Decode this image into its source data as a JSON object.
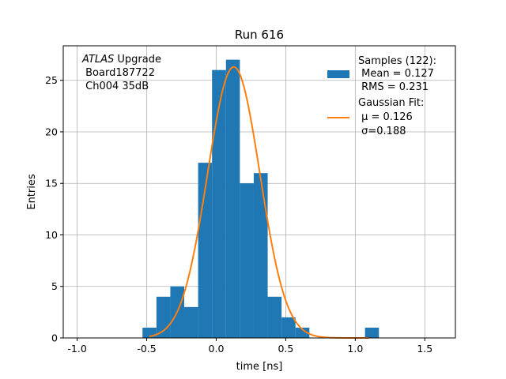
{
  "chart_data": {
    "type": "bar",
    "title": "Run 616",
    "xlabel": "time [ns]",
    "ylabel": "Entries",
    "xlim": [
      -1.1,
      1.72
    ],
    "ylim": [
      0,
      28.35
    ],
    "xticks": [
      "-1.0",
      "-0.5",
      "0.0",
      "0.5",
      "1.0",
      "1.5"
    ],
    "xtick_values": [
      -1.0,
      -0.5,
      0.0,
      0.5,
      1.0,
      1.5
    ],
    "yticks": [
      "0",
      "5",
      "10",
      "15",
      "20",
      "25"
    ],
    "ytick_values": [
      0,
      5,
      10,
      15,
      20,
      25
    ],
    "grid": true,
    "legend_placement": "top-right",
    "bar_color": "#1f77b4",
    "line_color": "#ff7f0e",
    "histogram": {
      "bin_edges": [
        -0.53,
        -0.43,
        -0.33,
        -0.23,
        -0.13,
        -0.03,
        0.07,
        0.17,
        0.27,
        0.37,
        0.47,
        0.57,
        0.67,
        0.77,
        0.87,
        0.97,
        1.07,
        1.17
      ],
      "counts": [
        1,
        4,
        5,
        3,
        17,
        26,
        27,
        15,
        16,
        4,
        2,
        1,
        0,
        0,
        0,
        0,
        1
      ]
    },
    "gaussian_fit": {
      "mu": 0.126,
      "sigma": 0.188,
      "amplitude": 26.3,
      "x_range": [
        -0.48,
        1.1
      ]
    },
    "legend": {
      "samples_title": "Samples (122):",
      "samples_mean": " Mean = 0.127",
      "samples_rms": " RMS = 0.231",
      "fit_title": "Gaussian Fit:",
      "fit_mu": " μ = 0.126",
      "fit_sigma": " σ=0.188"
    },
    "annotation": {
      "atlas": "ATLAS",
      "upgrade": " Upgrade",
      "board": " Board187722",
      "channel": " Ch004 35dB"
    }
  }
}
